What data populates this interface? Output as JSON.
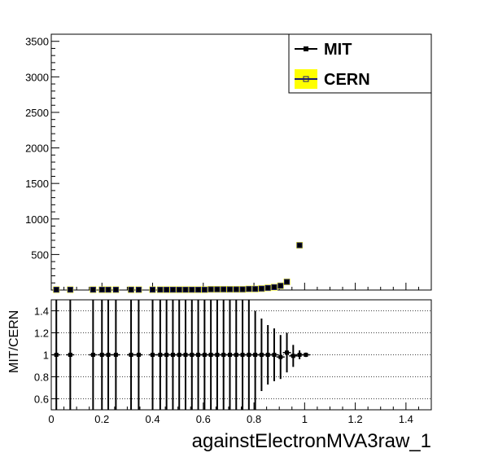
{
  "chart_data": [
    {
      "type": "scatter",
      "panel": "main",
      "title": "",
      "xlabel": "",
      "ylabel": "",
      "xlim": [
        0,
        1.5
      ],
      "ylim": [
        0,
        3600
      ],
      "yticks": [
        500,
        1000,
        1500,
        2000,
        2500,
        3000,
        3500
      ],
      "legend": {
        "placement": "top-right",
        "entries": [
          {
            "label": "MIT",
            "marker": "filled-square",
            "color": "#000000"
          },
          {
            "label": "CERN",
            "marker": "open-square",
            "color": "#1a1a6e",
            "fill": "#ffff00"
          }
        ]
      },
      "x": [
        0.02,
        0.075,
        0.165,
        0.2,
        0.225,
        0.255,
        0.315,
        0.345,
        0.4,
        0.43,
        0.455,
        0.48,
        0.505,
        0.53,
        0.555,
        0.58,
        0.605,
        0.63,
        0.655,
        0.68,
        0.705,
        0.73,
        0.755,
        0.78,
        0.805,
        0.83,
        0.855,
        0.88,
        0.905,
        0.93,
        0.98
      ],
      "series": [
        {
          "name": "MIT",
          "values": [
            5,
            5,
            5,
            5,
            5,
            5,
            5,
            5,
            5,
            5,
            5,
            5,
            5,
            5,
            5,
            5,
            5,
            10,
            10,
            10,
            10,
            10,
            10,
            15,
            15,
            20,
            30,
            40,
            60,
            115,
            630
          ]
        },
        {
          "name": "CERN",
          "values": [
            5,
            5,
            5,
            5,
            5,
            5,
            5,
            5,
            5,
            5,
            5,
            5,
            5,
            5,
            5,
            5,
            5,
            10,
            10,
            10,
            10,
            10,
            10,
            15,
            15,
            20,
            30,
            40,
            60,
            115,
            630
          ]
        }
      ]
    },
    {
      "type": "scatter",
      "panel": "ratio",
      "xlabel": "againstElectronMVA3raw_1",
      "ylabel": "MIT/CERN",
      "xlim": [
        0,
        1.5
      ],
      "ylim": [
        0.5,
        1.5
      ],
      "xticks": [
        0,
        0.2,
        0.4,
        0.6,
        0.8,
        1,
        1.2,
        1.4
      ],
      "xtick_labels": [
        "0",
        "0.2",
        "0.4",
        "0.6",
        "0.8",
        "1",
        "1.2",
        "1.4"
      ],
      "yticks": [
        0.6,
        0.8,
        1,
        1.2,
        1.4
      ],
      "ytick_labels": [
        "0.6",
        "0.8",
        "1",
        "1.2",
        "1.4"
      ],
      "grid": "horizontal dotted",
      "x": [
        0.02,
        0.075,
        0.165,
        0.2,
        0.225,
        0.255,
        0.315,
        0.345,
        0.4,
        0.43,
        0.455,
        0.48,
        0.505,
        0.53,
        0.555,
        0.58,
        0.605,
        0.63,
        0.655,
        0.68,
        0.705,
        0.73,
        0.755,
        0.78,
        0.805,
        0.83,
        0.855,
        0.88,
        0.905,
        0.93,
        0.955,
        0.98,
        1.005
      ],
      "values": [
        1,
        1,
        1,
        1,
        1,
        1,
        1,
        1,
        1,
        1,
        1,
        1,
        1,
        1,
        1,
        1,
        1,
        1,
        1,
        1,
        1,
        1,
        1,
        1,
        1,
        1,
        1,
        1,
        0.98,
        1.02,
        0.99,
        1.0,
        1.0
      ],
      "err_low": [
        0.5,
        0.5,
        0.5,
        0.5,
        0.5,
        0.5,
        0.5,
        0.5,
        0.5,
        0.5,
        0.5,
        0.5,
        0.5,
        0.5,
        0.5,
        0.5,
        0.5,
        0.5,
        0.5,
        0.5,
        0.5,
        0.5,
        0.5,
        0.5,
        0.5,
        0.33,
        0.27,
        0.24,
        0.2,
        0.18,
        0.1,
        0.04,
        0.02
      ],
      "err_high": [
        0.5,
        0.5,
        0.5,
        0.5,
        0.5,
        0.5,
        0.5,
        0.5,
        0.5,
        0.5,
        0.5,
        0.5,
        0.5,
        0.5,
        0.5,
        0.5,
        0.5,
        0.5,
        0.5,
        0.5,
        0.5,
        0.5,
        0.5,
        0.5,
        0.4,
        0.33,
        0.27,
        0.24,
        0.2,
        0.18,
        0.1,
        0.04,
        0.02
      ]
    }
  ]
}
